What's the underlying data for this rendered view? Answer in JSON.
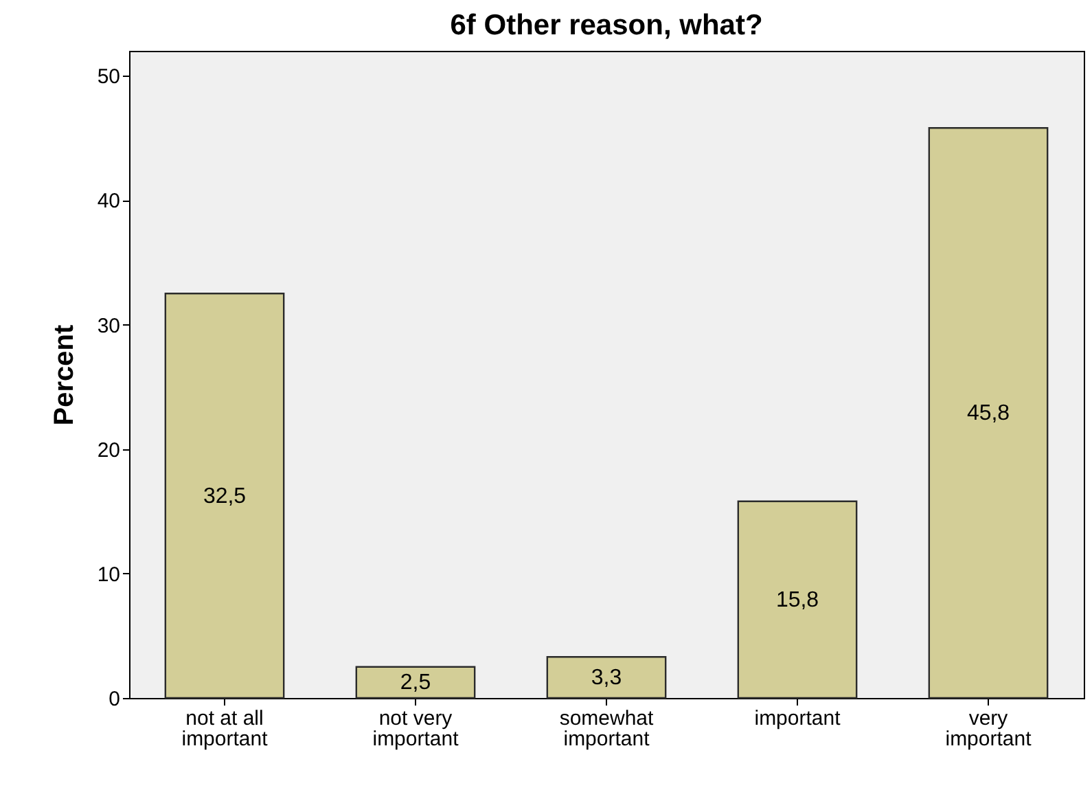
{
  "chart_data": {
    "type": "bar",
    "title": "6f Other reason, what?",
    "ylabel": "Percent",
    "categories": [
      "not at all important",
      "not very important",
      "somewhat important",
      "important",
      "very important"
    ],
    "values": [
      32.5,
      2.5,
      3.3,
      15.8,
      45.8
    ],
    "value_labels": [
      "32,5",
      "2,5",
      "3,3",
      "15,8",
      "45,8"
    ],
    "color": "#d3ce97",
    "ylim": [
      0,
      52
    ],
    "yticks": [
      0,
      10,
      20,
      30,
      40,
      50
    ]
  }
}
